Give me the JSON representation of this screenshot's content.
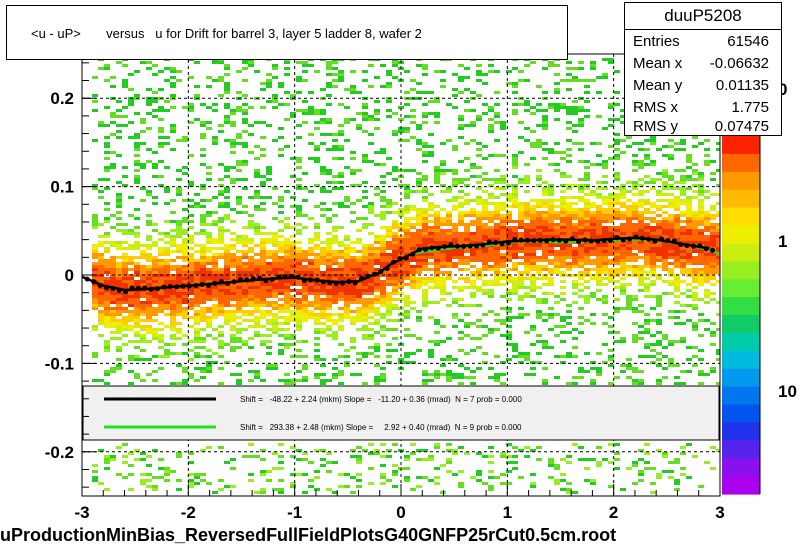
{
  "title": "<u - uP>       versus   u for Drift for barrel 3, layer 5 ladder 8, wafer 2",
  "stats": {
    "name": "duuP5208",
    "rows": [
      {
        "label": "Entries",
        "value": "61546"
      },
      {
        "label": "Mean x",
        "value": "-0.06632"
      },
      {
        "label": "Mean y",
        "value": "0.01135"
      },
      {
        "label": "RMS x",
        "value": "1.775"
      },
      {
        "label": "RMS y",
        "value": "0.07475"
      }
    ]
  },
  "footer": "uProductionMinBias_ReversedFullFieldPlotsG40GNFP25rCut0.5cm.root",
  "legend": [
    {
      "text": "Shift =   -48.22 + 2.24 (mkm) Slope =   -11.20 + 0.36 (mrad)  N = 7 prob = 0.000",
      "color": "#000000"
    },
    {
      "text": "Shift =   293.38 + 2.48 (mkm) Slope =     2.92 + 0.40 (mrad)  N = 9 prob = 0.000",
      "color": "#22dd22"
    }
  ],
  "palette_labels": [
    "0",
    "1",
    "10"
  ],
  "chart_data": {
    "type": "heatmap",
    "xlim": [
      -3,
      3
    ],
    "ylim": [
      -0.25,
      0.25
    ],
    "xticks": [
      "-3",
      "-2",
      "-1",
      "0",
      "1",
      "2",
      "3"
    ],
    "yticks": [
      "-0.2",
      "-0.1",
      "0",
      "0.1",
      "0.2"
    ],
    "grid": true,
    "profile_black": {
      "x": [
        -3.0,
        -2.8,
        -2.6,
        -2.4,
        -2.2,
        -2.0,
        -1.8,
        -1.6,
        -1.4,
        -1.2,
        -1.0,
        -0.8,
        -0.6,
        -0.4,
        -0.2,
        -0.1,
        0.0,
        0.1,
        0.2,
        0.4,
        0.6,
        0.8,
        1.0,
        1.2,
        1.4,
        1.6,
        1.8,
        2.0,
        2.2,
        2.4,
        2.6,
        2.8,
        2.9
      ],
      "y": [
        -0.002,
        -0.012,
        -0.017,
        -0.016,
        -0.014,
        -0.012,
        -0.01,
        -0.008,
        -0.006,
        -0.004,
        -0.003,
        -0.006,
        -0.008,
        -0.007,
        0.003,
        0.012,
        0.018,
        0.024,
        0.03,
        0.032,
        0.033,
        0.035,
        0.038,
        0.039,
        0.04,
        0.04,
        0.039,
        0.041,
        0.042,
        0.04,
        0.036,
        0.032,
        0.03
      ]
    },
    "profile_green": {
      "x": [
        0.1,
        0.3,
        0.5,
        0.7,
        0.9,
        1.1,
        1.3,
        1.5,
        1.7,
        1.9,
        2.1,
        2.3,
        2.5,
        2.7,
        2.9,
        3.0
      ],
      "y": [
        0.024,
        0.028,
        0.031,
        0.032,
        0.035,
        0.038,
        0.038,
        0.037,
        0.038,
        0.039,
        0.04,
        0.04,
        0.038,
        0.034,
        0.028,
        0.024
      ]
    }
  }
}
